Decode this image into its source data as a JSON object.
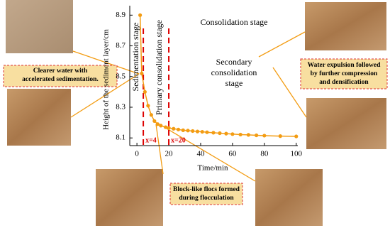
{
  "chart_data": {
    "type": "line",
    "x_label": "Time/min",
    "y_label": "Height of the sediment layer/cm",
    "x": [
      2,
      3,
      5,
      7,
      9,
      11,
      13,
      15,
      18,
      20,
      23,
      26,
      29,
      32,
      35,
      38,
      41,
      44,
      48,
      52,
      56,
      60,
      65,
      70,
      75,
      80,
      90,
      100
    ],
    "series": [
      {
        "color": "#f39c12",
        "values": [
          8.9,
          8.52,
          8.4,
          8.31,
          8.25,
          8.21,
          8.19,
          8.18,
          8.17,
          8.165,
          8.16,
          8.155,
          8.15,
          8.148,
          8.145,
          8.142,
          8.14,
          8.137,
          8.134,
          8.131,
          8.128,
          8.125,
          8.122,
          8.12,
          8.117,
          8.115,
          8.112,
          8.11
        ]
      }
    ],
    "xlim": [
      -4.5,
      101
    ],
    "ylim": [
      8.05,
      8.92
    ],
    "xticks": [
      0,
      20,
      40,
      60,
      80,
      100
    ],
    "yticks": [
      8.1,
      8.3,
      8.5,
      8.7,
      8.9
    ],
    "vlines": [
      {
        "value": 4,
        "label": "x=4"
      },
      {
        "value": 20,
        "label": "x=20"
      }
    ],
    "stage_labels": [
      "Sedimentation stage",
      "Primary consolidation stage",
      "Consolidation stage"
    ],
    "secondary_label": [
      "Secondary",
      "consolidation",
      "stage"
    ],
    "callouts": [
      [
        "Clearer water with",
        "accelerated sedimentation."
      ],
      [
        "Water expulsion followed",
        "by further compression",
        "and densification"
      ],
      [
        "Block-like flocs formed",
        "during flocculation"
      ]
    ]
  }
}
